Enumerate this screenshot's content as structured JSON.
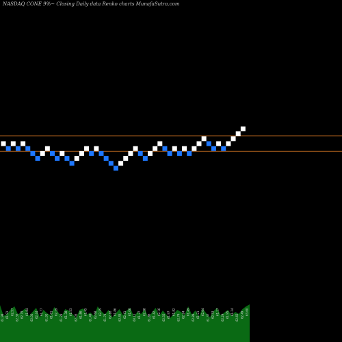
{
  "header": "NASDAQ CONE 9%~  Closing Daily data  Renko  charts MunafaSutra.com",
  "chart_data": [
    {
      "type": "renko",
      "title": "NASDAQ CONE 9%~  Closing Daily data  Renko  charts MunafaSutra.com",
      "colors": {
        "up": "#ffffff",
        "down": "#1e78ff",
        "level_line": "#b4641e",
        "background": "#000000"
      },
      "reference_levels": [
        100,
        98
      ],
      "bricks": [
        {
          "dir": "up",
          "level": 99
        },
        {
          "dir": "down",
          "level": 98
        },
        {
          "dir": "up",
          "level": 99
        },
        {
          "dir": "down",
          "level": 98
        },
        {
          "dir": "up",
          "level": 99
        },
        {
          "dir": "down",
          "level": 98
        },
        {
          "dir": "down",
          "level": 97
        },
        {
          "dir": "down",
          "level": 96
        },
        {
          "dir": "up",
          "level": 97
        },
        {
          "dir": "up",
          "level": 98
        },
        {
          "dir": "down",
          "level": 97
        },
        {
          "dir": "down",
          "level": 96
        },
        {
          "dir": "up",
          "level": 97
        },
        {
          "dir": "down",
          "level": 96
        },
        {
          "dir": "down",
          "level": 95
        },
        {
          "dir": "up",
          "level": 96
        },
        {
          "dir": "up",
          "level": 97
        },
        {
          "dir": "up",
          "level": 98
        },
        {
          "dir": "down",
          "level": 97
        },
        {
          "dir": "up",
          "level": 98
        },
        {
          "dir": "down",
          "level": 97
        },
        {
          "dir": "down",
          "level": 96
        },
        {
          "dir": "down",
          "level": 95
        },
        {
          "dir": "down",
          "level": 94
        },
        {
          "dir": "up",
          "level": 95
        },
        {
          "dir": "up",
          "level": 96
        },
        {
          "dir": "up",
          "level": 97
        },
        {
          "dir": "up",
          "level": 98
        },
        {
          "dir": "down",
          "level": 97
        },
        {
          "dir": "down",
          "level": 96
        },
        {
          "dir": "up",
          "level": 97
        },
        {
          "dir": "up",
          "level": 98
        },
        {
          "dir": "up",
          "level": 99
        },
        {
          "dir": "down",
          "level": 98
        },
        {
          "dir": "down",
          "level": 97
        },
        {
          "dir": "up",
          "level": 98
        },
        {
          "dir": "down",
          "level": 97
        },
        {
          "dir": "up",
          "level": 98
        },
        {
          "dir": "down",
          "level": 97
        },
        {
          "dir": "up",
          "level": 98
        },
        {
          "dir": "up",
          "level": 99
        },
        {
          "dir": "up",
          "level": 100
        },
        {
          "dir": "down",
          "level": 99
        },
        {
          "dir": "down",
          "level": 98
        },
        {
          "dir": "up",
          "level": 99
        },
        {
          "dir": "down",
          "level": 98
        },
        {
          "dir": "up",
          "level": 99
        },
        {
          "dir": "up",
          "level": 100
        },
        {
          "dir": "up",
          "level": 101
        },
        {
          "dir": "up",
          "level": 102
        }
      ],
      "volume_area": {
        "color": "#0a6a14",
        "values": [
          54,
          38,
          41,
          48,
          52,
          40,
          45,
          49,
          38,
          44,
          50,
          36,
          47,
          42,
          39,
          51,
          44,
          37,
          48,
          46,
          41,
          35,
          47,
          49,
          40,
          43,
          38,
          52,
          45,
          40,
          47,
          36,
          42,
          48,
          39,
          46,
          50,
          37,
          44,
          41,
          48,
          36,
          43,
          50,
          38,
          46,
          40,
          35,
          41,
          47,
          44,
          39,
          52,
          40,
          46,
          37,
          49,
          42,
          36,
          45,
          50,
          39,
          43,
          47,
          38,
          44,
          41,
          48,
          52,
          55
        ]
      },
      "price_labels": [
        "61.98",
        "61.91",
        "62.57",
        "62.35",
        "62.79",
        "61.84",
        "62.05",
        "62.44",
        "61.77",
        "61.92",
        "61.61",
        "62.29",
        "61.28",
        "61.38",
        "61.53",
        "62.05",
        "61.86",
        "61.45",
        "61.49",
        "62.68",
        "62.25",
        "61.74",
        "62.18",
        "61.86",
        "62.45",
        "62.41",
        "61.06",
        "60.12",
        "61.37",
        "62.28",
        "61.86",
        "61.42",
        "62.16",
        "62.55",
        "61.97",
        "61.82",
        "62.74",
        "62.24",
        "61.49",
        "62.89",
        "61.21",
        "62.64",
        "61.37",
        "62.53",
        "61.17",
        "62.29",
        "61.95",
        "61.24",
        "62.65",
        "62.49",
        "63.60"
      ]
    }
  ]
}
